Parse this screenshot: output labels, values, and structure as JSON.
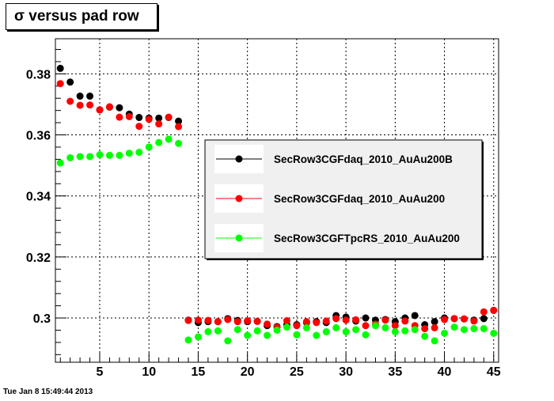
{
  "title": "σ versus pad row",
  "footer_timestamp": "Tue Jan  8 15:49:44 2013",
  "chart_data": {
    "type": "scatter",
    "title": "σ versus pad row",
    "xlabel": "",
    "ylabel": "",
    "xlim": [
      0.5,
      45.5
    ],
    "ylim": [
      0.2855,
      0.3915
    ],
    "x_ticks": [
      5,
      10,
      15,
      20,
      25,
      30,
      35,
      40,
      45
    ],
    "y_ticks": [
      0.3,
      0.32,
      0.34,
      0.36,
      0.38
    ],
    "y_tick_labels": [
      "0.3",
      "0.32",
      "0.34",
      "0.36",
      "0.38"
    ],
    "grid": true,
    "legend_position": "right",
    "x": [
      1,
      2,
      3,
      4,
      5,
      6,
      7,
      8,
      9,
      10,
      11,
      12,
      13,
      14,
      15,
      16,
      17,
      18,
      19,
      20,
      21,
      22,
      23,
      24,
      25,
      26,
      27,
      28,
      29,
      30,
      31,
      32,
      33,
      34,
      35,
      36,
      37,
      38,
      39,
      40,
      41,
      42,
      43,
      44,
      45
    ],
    "series": [
      {
        "name": "SecRow3CGFdaq_2010_AuAu200B",
        "color": "#000000",
        "values": [
          0.3818,
          0.3773,
          0.3727,
          0.3727,
          0.3682,
          0.3691,
          0.3689,
          0.3668,
          0.3657,
          0.3655,
          0.3655,
          0.3657,
          0.3645,
          0.2993,
          0.2985,
          0.2988,
          0.2988,
          0.2998,
          0.2992,
          0.2988,
          0.2989,
          0.2975,
          0.2972,
          0.2978,
          0.2978,
          0.2985,
          0.2988,
          0.2985,
          0.3008,
          0.3003,
          0.299,
          0.3,
          0.2993,
          0.2995,
          0.2988,
          0.3,
          0.3008,
          0.2978,
          0.2988,
          0.3,
          0.2998,
          0.2997,
          0.2993,
          0.2998,
          0.3025
        ]
      },
      {
        "name": "SecRow3CGFdaq_2010_AuAu200",
        "color": "#ff0000",
        "values": [
          0.3768,
          0.371,
          0.3697,
          0.3698,
          0.3682,
          0.3692,
          0.3658,
          0.366,
          0.3628,
          0.3651,
          0.3636,
          0.3658,
          0.3627,
          0.2992,
          0.2993,
          0.2992,
          0.2988,
          0.2995,
          0.2988,
          0.2991,
          0.2989,
          0.298,
          0.297,
          0.2991,
          0.2975,
          0.2988,
          0.2985,
          0.299,
          0.2998,
          0.2993,
          0.2994,
          0.2975,
          0.298,
          0.2993,
          0.2975,
          0.299,
          0.2975,
          0.2965,
          0.2968,
          0.2995,
          0.2998,
          0.2997,
          0.299,
          0.302,
          0.3025
        ]
      },
      {
        "name": "SecRow3CGFTpcRS_2010_AuAu200",
        "color": "#00ff00",
        "values": [
          0.3508,
          0.3525,
          0.3529,
          0.3529,
          0.3535,
          0.3533,
          0.3533,
          0.354,
          0.3543,
          0.356,
          0.3575,
          0.3586,
          0.3572,
          0.2928,
          0.2938,
          0.2955,
          0.2958,
          0.2925,
          0.2962,
          0.2943,
          0.2958,
          0.2943,
          0.296,
          0.297,
          0.2945,
          0.2968,
          0.2943,
          0.2955,
          0.2968,
          0.2955,
          0.2962,
          0.2945,
          0.2975,
          0.2968,
          0.2955,
          0.2958,
          0.2962,
          0.294,
          0.2925,
          0.295,
          0.297,
          0.2962,
          0.2965,
          0.2965,
          0.295
        ]
      }
    ]
  }
}
